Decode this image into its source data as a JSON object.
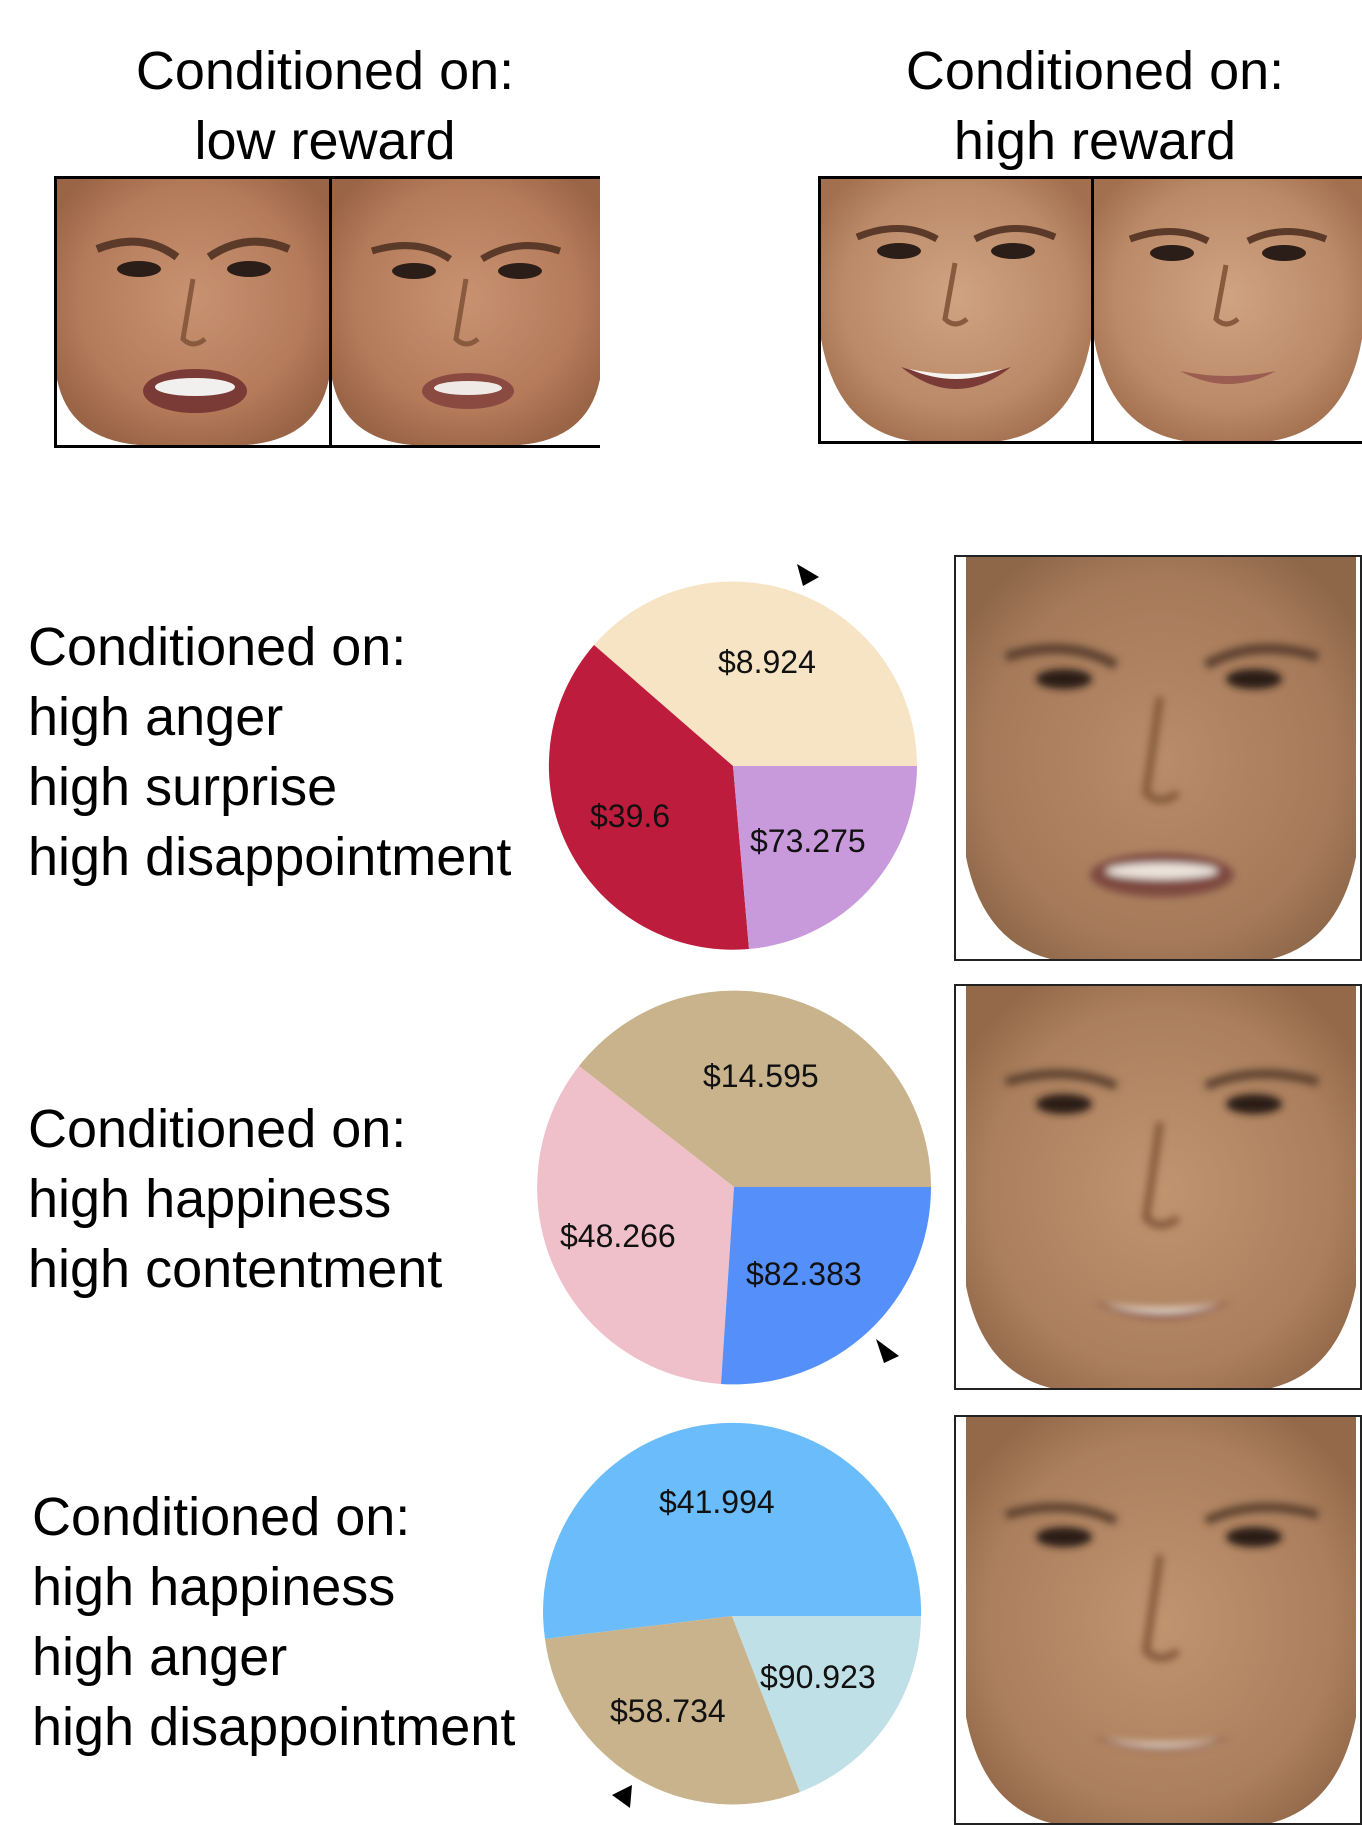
{
  "top": {
    "low": {
      "line1": "Conditioned on:",
      "line2": "low reward"
    },
    "high": {
      "line1": "Conditioned on:",
      "line2": "high reward"
    }
  },
  "rows": [
    {
      "lines": [
        "Conditioned on:",
        "high anger",
        "high surprise",
        "high disappointment"
      ],
      "pie": [
        {
          "label": "$8.924",
          "color": "#f7e4c4"
        },
        {
          "label": "$39.6",
          "color": "#be1c3c"
        },
        {
          "label": "$73.275",
          "color": "#c89adc"
        }
      ]
    },
    {
      "lines": [
        "Conditioned on:",
        "high happiness",
        "high contentment"
      ],
      "pie": [
        {
          "label": "$14.595",
          "color": "#c9b38c"
        },
        {
          "label": "$48.266",
          "color": "#efc0ca"
        },
        {
          "label": "$82.383",
          "color": "#5590fa"
        }
      ]
    },
    {
      "lines": [
        "Conditioned on:",
        "high happiness",
        "high anger",
        "high disappointment"
      ],
      "pie": [
        {
          "label": "$41.994",
          "color": "#6abcfa"
        },
        {
          "label": "$58.734",
          "color": "#c9b38c"
        },
        {
          "label": "$90.923",
          "color": "#bfe0e6"
        }
      ]
    }
  ]
}
